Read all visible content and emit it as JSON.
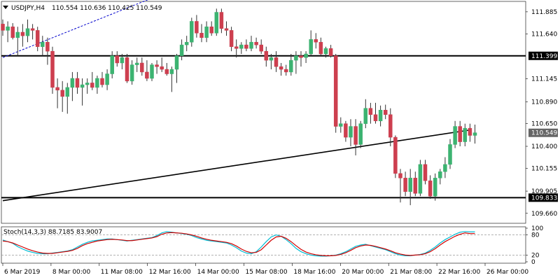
{
  "header": {
    "dropdown_icon": "triangle-down-icon",
    "symbol": "USDJPY,H4",
    "ohlc": "110.554 110.636 110.425 110.549"
  },
  "indicator": {
    "label": "Stoch(14,3,3) 88.7185 83.9007"
  },
  "colors": {
    "bull": "#3cb371",
    "bear": "#cd3f4f",
    "main_line": "#00bcd4",
    "signal_line": "#d00000",
    "level_line": "#000000",
    "trend_dashed": "#0000cc",
    "price_tag_bg": "#000000"
  },
  "chart_data": [
    {
      "type": "candlestick",
      "title": "",
      "ylim": [
        109.55,
        112.0
      ],
      "y_ticks": [
        "111.885",
        "111.640",
        "111.399",
        "111.145",
        "110.890",
        "110.650",
        "110.549",
        "110.400",
        "110.155",
        "109.905",
        "109.833",
        "109.660"
      ],
      "x_ticks": [
        "6 Mar 2019",
        "8 Mar 00:00",
        "11 Mar 08:00",
        "12 Mar 16:00",
        "14 Mar 00:00",
        "15 Mar 08:00",
        "18 Mar 16:00",
        "20 Mar 00:00",
        "21 Mar 08:00",
        "22 Mar 16:00",
        "26 Mar 00:00"
      ],
      "horizontal_levels": [
        {
          "label": "111.399",
          "value": 111.399
        },
        {
          "label": "109.833",
          "value": 109.833
        }
      ],
      "trendlines": [
        {
          "style": "solid",
          "from": [
            0,
            109.8
          ],
          "to": [
            94,
            110.58
          ]
        },
        {
          "style": "dashed",
          "from": [
            0,
            111.38
          ],
          "to": [
            32,
            112.08
          ]
        }
      ],
      "current_price": {
        "label": "110.549",
        "value": 110.549
      },
      "candles": [
        {
          "o": 111.75,
          "h": 111.8,
          "l": 111.62,
          "c": 111.68
        },
        {
          "o": 111.68,
          "h": 111.78,
          "l": 111.55,
          "c": 111.72
        },
        {
          "o": 111.72,
          "h": 111.76,
          "l": 111.58,
          "c": 111.6
        },
        {
          "o": 111.6,
          "h": 111.72,
          "l": 111.4,
          "c": 111.66
        },
        {
          "o": 111.66,
          "h": 111.75,
          "l": 111.5,
          "c": 111.62
        },
        {
          "o": 111.62,
          "h": 111.8,
          "l": 111.55,
          "c": 111.7
        },
        {
          "o": 111.7,
          "h": 111.75,
          "l": 111.58,
          "c": 111.68
        },
        {
          "o": 111.68,
          "h": 111.72,
          "l": 111.45,
          "c": 111.5
        },
        {
          "o": 111.5,
          "h": 111.62,
          "l": 111.4,
          "c": 111.55
        },
        {
          "o": 111.55,
          "h": 111.6,
          "l": 111.3,
          "c": 111.45
        },
        {
          "o": 111.45,
          "h": 111.5,
          "l": 110.98,
          "c": 111.05
        },
        {
          "o": 111.05,
          "h": 111.15,
          "l": 110.82,
          "c": 111.02
        },
        {
          "o": 111.02,
          "h": 111.12,
          "l": 110.78,
          "c": 110.95
        },
        {
          "o": 110.95,
          "h": 111.1,
          "l": 110.76,
          "c": 111.05
        },
        {
          "o": 111.05,
          "h": 111.22,
          "l": 110.9,
          "c": 111.15
        },
        {
          "o": 111.15,
          "h": 111.22,
          "l": 110.98,
          "c": 111.05
        },
        {
          "o": 111.05,
          "h": 111.15,
          "l": 110.85,
          "c": 111.08
        },
        {
          "o": 111.08,
          "h": 111.15,
          "l": 110.98,
          "c": 111.1
        },
        {
          "o": 111.1,
          "h": 111.22,
          "l": 111.02,
          "c": 111.05
        },
        {
          "o": 111.05,
          "h": 111.18,
          "l": 110.98,
          "c": 111.15
        },
        {
          "o": 111.15,
          "h": 111.22,
          "l": 111.05,
          "c": 111.08
        },
        {
          "o": 111.08,
          "h": 111.25,
          "l": 111.02,
          "c": 111.2
        },
        {
          "o": 111.2,
          "h": 111.45,
          "l": 111.15,
          "c": 111.4
        },
        {
          "o": 111.4,
          "h": 111.45,
          "l": 111.28,
          "c": 111.32
        },
        {
          "o": 111.32,
          "h": 111.42,
          "l": 111.25,
          "c": 111.38
        },
        {
          "o": 111.38,
          "h": 111.42,
          "l": 111.1,
          "c": 111.12
        },
        {
          "o": 111.12,
          "h": 111.35,
          "l": 111.08,
          "c": 111.3
        },
        {
          "o": 111.3,
          "h": 111.38,
          "l": 111.22,
          "c": 111.32
        },
        {
          "o": 111.32,
          "h": 111.38,
          "l": 111.18,
          "c": 111.22
        },
        {
          "o": 111.22,
          "h": 111.35,
          "l": 111.12,
          "c": 111.15
        },
        {
          "o": 111.15,
          "h": 111.32,
          "l": 111.12,
          "c": 111.3
        },
        {
          "o": 111.3,
          "h": 111.35,
          "l": 111.2,
          "c": 111.28
        },
        {
          "o": 111.28,
          "h": 111.38,
          "l": 111.22,
          "c": 111.25
        },
        {
          "o": 111.25,
          "h": 111.32,
          "l": 111.18,
          "c": 111.2
        },
        {
          "o": 111.2,
          "h": 111.28,
          "l": 111.0,
          "c": 111.25
        },
        {
          "o": 111.25,
          "h": 111.42,
          "l": 111.1,
          "c": 111.4
        },
        {
          "o": 111.4,
          "h": 111.58,
          "l": 111.35,
          "c": 111.52
        },
        {
          "o": 111.52,
          "h": 111.62,
          "l": 111.45,
          "c": 111.55
        },
        {
          "o": 111.55,
          "h": 111.82,
          "l": 111.5,
          "c": 111.78
        },
        {
          "o": 111.78,
          "h": 111.85,
          "l": 111.6,
          "c": 111.65
        },
        {
          "o": 111.65,
          "h": 111.75,
          "l": 111.55,
          "c": 111.6
        },
        {
          "o": 111.6,
          "h": 111.78,
          "l": 111.55,
          "c": 111.72
        },
        {
          "o": 111.72,
          "h": 111.78,
          "l": 111.62,
          "c": 111.65
        },
        {
          "o": 111.65,
          "h": 111.92,
          "l": 111.62,
          "c": 111.88
        },
        {
          "o": 111.88,
          "h": 111.92,
          "l": 111.65,
          "c": 111.7
        },
        {
          "o": 111.7,
          "h": 111.78,
          "l": 111.62,
          "c": 111.68
        },
        {
          "o": 111.68,
          "h": 111.72,
          "l": 111.45,
          "c": 111.5
        },
        {
          "o": 111.5,
          "h": 111.58,
          "l": 111.38,
          "c": 111.48
        },
        {
          "o": 111.48,
          "h": 111.55,
          "l": 111.42,
          "c": 111.52
        },
        {
          "o": 111.52,
          "h": 111.58,
          "l": 111.45,
          "c": 111.48
        },
        {
          "o": 111.48,
          "h": 111.62,
          "l": 111.45,
          "c": 111.55
        },
        {
          "o": 111.55,
          "h": 111.6,
          "l": 111.48,
          "c": 111.52
        },
        {
          "o": 111.52,
          "h": 111.58,
          "l": 111.42,
          "c": 111.45
        },
        {
          "o": 111.45,
          "h": 111.5,
          "l": 111.28,
          "c": 111.35
        },
        {
          "o": 111.35,
          "h": 111.42,
          "l": 111.25,
          "c": 111.38
        },
        {
          "o": 111.38,
          "h": 111.45,
          "l": 111.22,
          "c": 111.28
        },
        {
          "o": 111.28,
          "h": 111.32,
          "l": 111.18,
          "c": 111.25
        },
        {
          "o": 111.25,
          "h": 111.3,
          "l": 111.18,
          "c": 111.22
        },
        {
          "o": 111.22,
          "h": 111.42,
          "l": 111.18,
          "c": 111.35
        },
        {
          "o": 111.35,
          "h": 111.45,
          "l": 111.2,
          "c": 111.4
        },
        {
          "o": 111.4,
          "h": 111.45,
          "l": 111.28,
          "c": 111.38
        },
        {
          "o": 111.38,
          "h": 111.45,
          "l": 111.32,
          "c": 111.42
        },
        {
          "o": 111.42,
          "h": 111.68,
          "l": 111.4,
          "c": 111.58
        },
        {
          "o": 111.58,
          "h": 111.65,
          "l": 111.48,
          "c": 111.55
        },
        {
          "o": 111.55,
          "h": 111.6,
          "l": 111.4,
          "c": 111.42
        },
        {
          "o": 111.42,
          "h": 111.5,
          "l": 111.38,
          "c": 111.48
        },
        {
          "o": 111.48,
          "h": 111.52,
          "l": 111.38,
          "c": 111.4
        },
        {
          "o": 111.4,
          "h": 111.42,
          "l": 110.55,
          "c": 110.62
        },
        {
          "o": 110.62,
          "h": 110.72,
          "l": 110.55,
          "c": 110.65
        },
        {
          "o": 110.65,
          "h": 110.68,
          "l": 110.45,
          "c": 110.5
        },
        {
          "o": 110.5,
          "h": 110.7,
          "l": 110.4,
          "c": 110.62
        },
        {
          "o": 110.62,
          "h": 110.7,
          "l": 110.3,
          "c": 110.42
        },
        {
          "o": 110.42,
          "h": 110.68,
          "l": 110.38,
          "c": 110.65
        },
        {
          "o": 110.65,
          "h": 110.92,
          "l": 110.6,
          "c": 110.82
        },
        {
          "o": 110.82,
          "h": 110.88,
          "l": 110.65,
          "c": 110.75
        },
        {
          "o": 110.75,
          "h": 110.88,
          "l": 110.65,
          "c": 110.68
        },
        {
          "o": 110.68,
          "h": 110.85,
          "l": 110.62,
          "c": 110.8
        },
        {
          "o": 110.8,
          "h": 110.86,
          "l": 110.7,
          "c": 110.75
        },
        {
          "o": 110.75,
          "h": 110.82,
          "l": 110.4,
          "c": 110.5
        },
        {
          "o": 110.5,
          "h": 110.52,
          "l": 110.05,
          "c": 110.1
        },
        {
          "o": 110.1,
          "h": 110.15,
          "l": 109.78,
          "c": 110.05
        },
        {
          "o": 110.05,
          "h": 110.12,
          "l": 109.85,
          "c": 109.9
        },
        {
          "o": 109.9,
          "h": 110.15,
          "l": 109.75,
          "c": 110.05
        },
        {
          "o": 110.05,
          "h": 110.12,
          "l": 109.85,
          "c": 109.88
        },
        {
          "o": 109.88,
          "h": 110.25,
          "l": 109.85,
          "c": 110.2
        },
        {
          "o": 110.2,
          "h": 110.25,
          "l": 109.98,
          "c": 110.02
        },
        {
          "o": 110.02,
          "h": 110.08,
          "l": 109.82,
          "c": 109.85
        },
        {
          "o": 109.85,
          "h": 110.1,
          "l": 109.8,
          "c": 110.05
        },
        {
          "o": 110.05,
          "h": 110.15,
          "l": 109.98,
          "c": 110.12
        },
        {
          "o": 110.12,
          "h": 110.28,
          "l": 110.05,
          "c": 110.2
        },
        {
          "o": 110.2,
          "h": 110.48,
          "l": 110.15,
          "c": 110.42
        },
        {
          "o": 110.42,
          "h": 110.68,
          "l": 110.38,
          "c": 110.62
        },
        {
          "o": 110.62,
          "h": 110.68,
          "l": 110.4,
          "c": 110.45
        },
        {
          "o": 110.45,
          "h": 110.65,
          "l": 110.4,
          "c": 110.6
        },
        {
          "o": 110.6,
          "h": 110.65,
          "l": 110.45,
          "c": 110.52
        },
        {
          "o": 110.52,
          "h": 110.64,
          "l": 110.43,
          "c": 110.55
        }
      ]
    },
    {
      "type": "line",
      "title": "",
      "ylim": [
        0,
        100
      ],
      "y_ticks": [
        "100",
        "80",
        "20",
        "0"
      ],
      "levels": [
        80,
        20
      ],
      "series": [
        {
          "values": [
            65,
            60,
            55,
            45,
            38,
            32,
            28,
            25,
            24,
            24,
            26,
            28,
            30,
            32,
            36,
            44,
            52,
            58,
            62,
            64,
            66,
            68,
            68,
            66,
            64,
            62,
            64,
            66,
            68,
            70,
            72,
            78,
            86,
            90,
            88,
            86,
            84,
            82,
            78,
            72,
            68,
            64,
            62,
            60,
            58,
            56,
            50,
            42,
            32,
            26,
            24,
            30,
            44,
            60,
            74,
            80,
            76,
            66,
            54,
            40,
            30,
            24,
            20,
            18,
            17,
            17,
            18,
            20,
            24,
            30,
            38,
            46,
            50,
            52,
            48,
            44,
            40,
            36,
            30,
            24,
            20,
            18,
            18,
            20,
            22,
            26,
            34,
            44,
            56,
            66,
            74,
            82,
            88,
            90,
            89,
            89
          ]
        },
        {
          "values": [
            62,
            60,
            56,
            50,
            44,
            38,
            33,
            29,
            26,
            25,
            25,
            27,
            29,
            31,
            34,
            40,
            48,
            54,
            58,
            62,
            64,
            66,
            67,
            66,
            65,
            63,
            63,
            65,
            67,
            69,
            71,
            75,
            82,
            86,
            87,
            86,
            85,
            83,
            80,
            76,
            71,
            67,
            64,
            62,
            60,
            58,
            54,
            47,
            38,
            31,
            27,
            28,
            36,
            50,
            64,
            74,
            76,
            70,
            60,
            48,
            37,
            29,
            24,
            21,
            19,
            18,
            18,
            19,
            22,
            27,
            34,
            42,
            47,
            50,
            49,
            46,
            42,
            38,
            33,
            27,
            23,
            20,
            19,
            20,
            21,
            24,
            30,
            39,
            50,
            60,
            68,
            76,
            82,
            86,
            84,
            84
          ]
        }
      ]
    }
  ]
}
